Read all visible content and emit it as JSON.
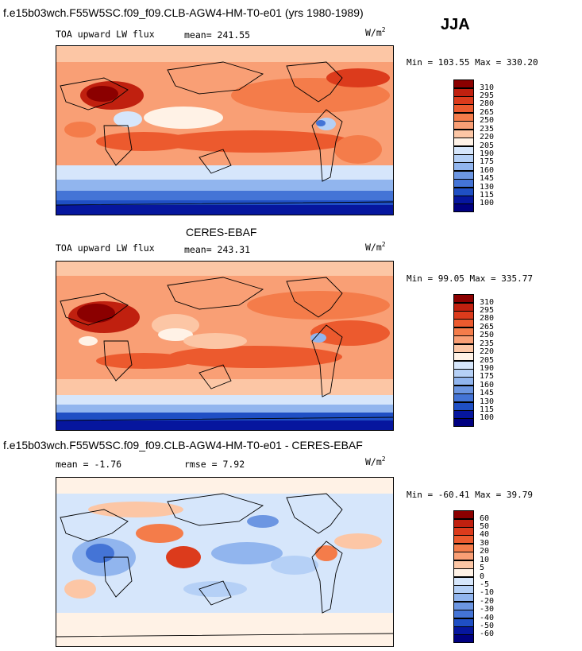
{
  "header": {
    "title": "f.e15b03wch.F55W5SC.f09_f09.CLB-AGW4-HM-T0-e01 (yrs 1980-1989)",
    "season": "JJA"
  },
  "panels": [
    {
      "title": "",
      "subtitle": "TOA upward LW flux",
      "stat": "mean= 241.55",
      "units": "W/m",
      "units_sup": "2",
      "minmax": "Min = 103.55 Max = 330.20",
      "levels": [
        "310",
        "295",
        "280",
        "265",
        "250",
        "235",
        "220",
        "205",
        "190",
        "175",
        "160",
        "145",
        "130",
        "115",
        "100"
      ]
    },
    {
      "title": "CERES-EBAF",
      "subtitle": "TOA upward LW flux",
      "stat": "mean= 243.31",
      "units": "W/m",
      "units_sup": "2",
      "minmax": "Min =  99.05 Max = 335.77",
      "levels": [
        "310",
        "295",
        "280",
        "265",
        "250",
        "235",
        "220",
        "205",
        "190",
        "175",
        "160",
        "145",
        "130",
        "115",
        "100"
      ]
    },
    {
      "title": "f.e15b03wch.F55W5SC.f09_f09.CLB-AGW4-HM-T0-e01 - CERES-EBAF",
      "subtitle": "mean =  -1.76",
      "stat": "rmse =   7.92",
      "units": "W/m",
      "units_sup": "2",
      "minmax": "Min = -60.41 Max =  39.79",
      "levels": [
        "60",
        "50",
        "40",
        "30",
        "20",
        "10",
        "5",
        "0",
        "-5",
        "-10",
        "-20",
        "-30",
        "-40",
        "-50",
        "-60"
      ]
    }
  ],
  "colors": {
    "scale": [
      "#8b0000",
      "#c0200f",
      "#dc3b1c",
      "#ec5a2e",
      "#f47c4a",
      "#f99f75",
      "#fcc6a5",
      "#fff2e6",
      "#d6e6fb",
      "#b5d0f6",
      "#91b5ee",
      "#6c96e2",
      "#4474d6",
      "#1f4fc4",
      "#06169e",
      "#000080"
    ]
  }
}
